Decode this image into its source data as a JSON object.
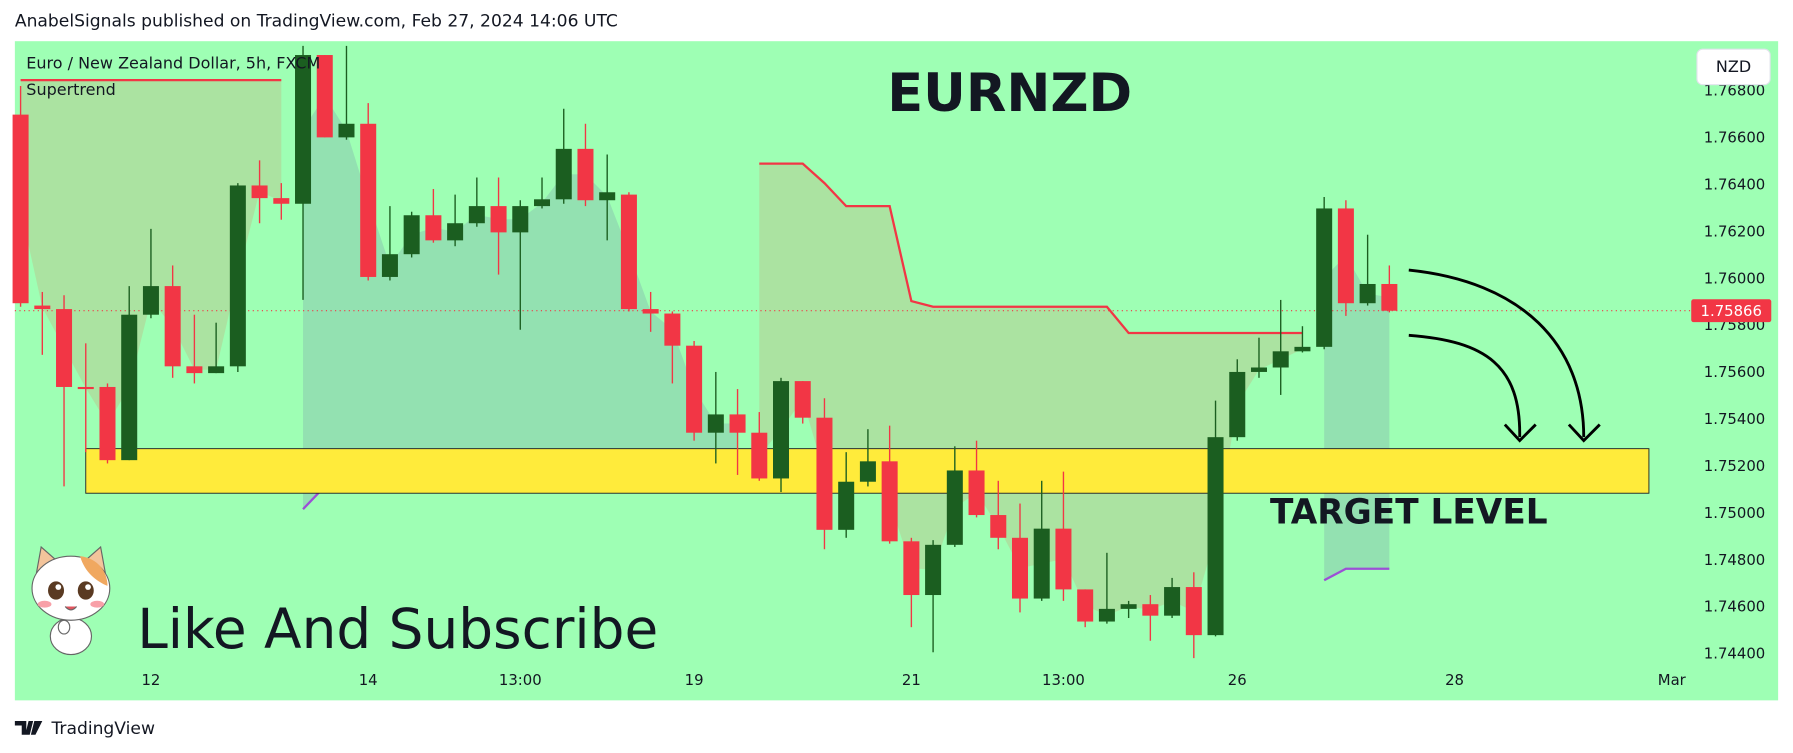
{
  "chart_data": {
    "type": "candlestick",
    "source": "AnabelSignals published on TradingView.com, Feb 27, 2024 14:06 UTC",
    "symbol_description": "Euro / New Zealand Dollar, 5h, FXCM",
    "title": "EURNZD",
    "currency": "NZD",
    "brand": "TradingView",
    "annotations": [
      "Like And Subscribe",
      "TARGET LEVEL"
    ],
    "categories": [
      null,
      null,
      null,
      null,
      null,
      null,
      "12",
      null,
      null,
      null,
      null,
      null,
      null,
      null,
      null,
      null,
      "14",
      null,
      null,
      null,
      null,
      null,
      null,
      "13:00",
      null,
      null,
      null,
      null,
      null,
      null,
      null,
      "19",
      null,
      null,
      null,
      null,
      null,
      null,
      null,
      null,
      null,
      "21",
      null,
      null,
      null,
      null,
      null,
      null,
      "13:00",
      null,
      null,
      null,
      null,
      null,
      null,
      null,
      "26",
      null,
      null,
      null,
      null,
      null,
      null,
      null,
      null,
      null,
      "28",
      null,
      null,
      null,
      null,
      null,
      null,
      null,
      null,
      null,
      "Mar"
    ],
    "open": [
      1.76702,
      1.75888,
      1.75873,
      1.75541,
      1.75541,
      1.75229,
      1.75849,
      1.75971,
      1.75629,
      1.756,
      1.75629,
      1.764,
      1.76346,
      1.76322,
      1.76956,
      1.76605,
      1.76663,
      1.7601,
      1.76107,
      1.76273,
      1.76166,
      1.76239,
      1.76312,
      1.762,
      1.76312,
      1.76341,
      1.76556,
      1.76337,
      1.76361,
      1.75873,
      1.75854,
      1.75717,
      1.75346,
      1.75424,
      1.75346,
      1.75151,
      1.75566,
      1.7541,
      1.74932,
      1.75137,
      1.75224,
      1.74883,
      1.74654,
      1.74868,
      1.75185,
      1.74995,
      1.74898,
      1.74639,
      1.74937,
      1.74678,
      1.74541,
      1.74595,
      1.74615,
      1.74566,
      1.74688,
      1.74483,
      1.75327,
      1.75605,
      1.75624,
      1.75693,
      1.75712,
      1.76302,
      1.75898,
      1.7598,
      null,
      null,
      null,
      null,
      null,
      null,
      null,
      null,
      null,
      null,
      null,
      null,
      null
    ],
    "high": [
      1.76824,
      1.75946,
      1.75932,
      1.75727,
      1.75556,
      1.75971,
      1.76215,
      1.76059,
      1.75849,
      1.75815,
      1.7641,
      1.76507,
      1.7641,
      1.76995,
      1.76956,
      1.76995,
      1.76751,
      1.76312,
      1.76288,
      1.76385,
      1.76361,
      1.76434,
      1.76434,
      1.76337,
      1.76434,
      1.76727,
      1.76663,
      1.76532,
      1.76371,
      1.75946,
      1.75863,
      1.75737,
      1.75605,
      1.75532,
      1.75434,
      1.7558,
      1.75566,
      1.75493,
      1.75263,
      1.75361,
      1.75376,
      1.74898,
      1.74888,
      1.75288,
      1.75312,
      1.75141,
      1.75044,
      1.75141,
      1.7518,
      1.74678,
      1.74834,
      1.74629,
      1.74654,
      1.74727,
      1.74751,
      1.75483,
      1.75659,
      1.75751,
      1.75912,
      1.758,
      1.76351,
      1.76337,
      1.7619,
      1.76059,
      null,
      null,
      null,
      null,
      null,
      null,
      null,
      null,
      null,
      null,
      null,
      null,
      null
    ],
    "low": [
      1.75883,
      1.75678,
      1.75117,
      1.75263,
      1.75215,
      1.75229,
      1.75834,
      1.7558,
      1.75556,
      1.756,
      1.75605,
      1.76239,
      1.76254,
      1.75912,
      1.76605,
      1.76595,
      1.75995,
      1.75995,
      1.76093,
      1.76156,
      1.76141,
      1.76224,
      1.7602,
      1.75785,
      1.76302,
      1.76322,
      1.76312,
      1.76166,
      1.75863,
      1.75776,
      1.75556,
      1.75312,
      1.75215,
      1.75166,
      1.75141,
      1.75093,
      1.75385,
      1.74849,
      1.74898,
      1.75117,
      1.74873,
      1.74517,
      1.7441,
      1.74859,
      1.74985,
      1.74849,
      1.7458,
      1.74629,
      1.74629,
      1.74517,
      1.74532,
      1.74556,
      1.74459,
      1.74556,
      1.74385,
      1.74478,
      1.75312,
      1.7558,
      1.75507,
      1.75688,
      1.75702,
      1.75844,
      1.75888,
      1.75859,
      null,
      null,
      null,
      null,
      null,
      null,
      null,
      null,
      null,
      null,
      null,
      null,
      null
    ],
    "close": [
      1.75898,
      1.75873,
      1.75541,
      1.75532,
      1.75229,
      1.75849,
      1.75971,
      1.75629,
      1.756,
      1.75629,
      1.764,
      1.76346,
      1.76322,
      1.76956,
      1.76605,
      1.76663,
      1.7601,
      1.76107,
      1.76273,
      1.76166,
      1.76239,
      1.76312,
      1.762,
      1.76312,
      1.76341,
      1.76556,
      1.76337,
      1.76371,
      1.75873,
      1.75854,
      1.75717,
      1.75346,
      1.75424,
      1.75346,
      1.75151,
      1.75566,
      1.7541,
      1.74932,
      1.75137,
      1.75224,
      1.74883,
      1.74654,
      1.74868,
      1.75185,
      1.74995,
      1.74898,
      1.74639,
      1.74937,
      1.74678,
      1.74541,
      1.74595,
      1.74615,
      1.74566,
      1.74688,
      1.74483,
      1.75327,
      1.75605,
      1.75624,
      1.75693,
      1.75712,
      1.76302,
      1.75898,
      1.7598,
      1.75866,
      null,
      null,
      null,
      null,
      null,
      null,
      null,
      null,
      null,
      null,
      null,
      null,
      null
    ],
    "up_color": "#1b5e20",
    "down_color": "#f23645",
    "indicator": {
      "name": "Supertrend",
      "down": [
        1.76849,
        1.76849,
        1.76849,
        1.76849,
        1.76849,
        1.76849,
        1.76849,
        1.76849,
        1.76849,
        1.76849,
        1.76849,
        1.76849,
        1.76849,
        null,
        null,
        null,
        null,
        null,
        null,
        null,
        null,
        null,
        null,
        null,
        null,
        null,
        null,
        null,
        null,
        null,
        null,
        null,
        null,
        null,
        1.76493,
        1.76493,
        1.76493,
        1.7641,
        1.76312,
        1.76312,
        1.76312,
        1.75907,
        1.75883,
        1.75883,
        1.75883,
        1.75883,
        1.75883,
        1.75883,
        1.75883,
        1.75883,
        1.75883,
        1.75771,
        1.75771,
        1.75771,
        1.75771,
        1.75771,
        1.75771,
        1.75771,
        1.75771,
        1.75771,
        null,
        null,
        null,
        null,
        null,
        null,
        null,
        null,
        null,
        null,
        null,
        null,
        null,
        null,
        null,
        null,
        null
      ],
      "up": [
        null,
        null,
        null,
        null,
        null,
        null,
        null,
        null,
        null,
        null,
        null,
        null,
        null,
        1.7502,
        1.75117,
        1.75166,
        1.75166,
        1.75166,
        1.75166,
        1.75166,
        1.75166,
        1.75166,
        1.75166,
        1.75166,
        1.75166,
        1.75166,
        1.75166,
        1.75166,
        1.75166,
        1.75166,
        1.75166,
        1.75166,
        1.75166,
        1.75166,
        null,
        null,
        null,
        null,
        null,
        null,
        null,
        null,
        null,
        null,
        null,
        null,
        null,
        null,
        null,
        null,
        null,
        null,
        null,
        null,
        null,
        null,
        null,
        null,
        null,
        null,
        1.74717,
        1.74766,
        1.74766,
        1.74766,
        null,
        null,
        null,
        null,
        null,
        null,
        null,
        null,
        null,
        null,
        null,
        null,
        null
      ],
      "down_color": "#f23645",
      "up_color": "#9c4fd6",
      "down_fill": "rgba(242,80,60,0.16)",
      "up_fill": "rgba(110,120,170,0.22)"
    },
    "target_zone": [
      1.75088,
      1.75278
    ],
    "target_color": "#ffeb3b",
    "last_price": 1.75866,
    "ylim": [
      1.74205,
      1.77015
    ],
    "yticks": [
      {
        "value": 1.744,
        "label": "1.74400"
      },
      {
        "value": 1.746,
        "label": "1.74600"
      },
      {
        "value": 1.748,
        "label": "1.74800"
      },
      {
        "value": 1.75,
        "label": "1.75000"
      },
      {
        "value": 1.752,
        "label": "1.75200"
      },
      {
        "value": 1.754,
        "label": "1.75400"
      },
      {
        "value": 1.756,
        "label": "1.75600"
      },
      {
        "value": 1.758,
        "label": "1.75800"
      },
      {
        "value": 1.76,
        "label": "1.76000"
      },
      {
        "value": 1.762,
        "label": "1.76200"
      },
      {
        "value": 1.764,
        "label": "1.76400"
      },
      {
        "value": 1.766,
        "label": "1.76600"
      },
      {
        "value": 1.768,
        "label": "1.76800"
      }
    ],
    "background": "#9effb4",
    "grid": false
  }
}
